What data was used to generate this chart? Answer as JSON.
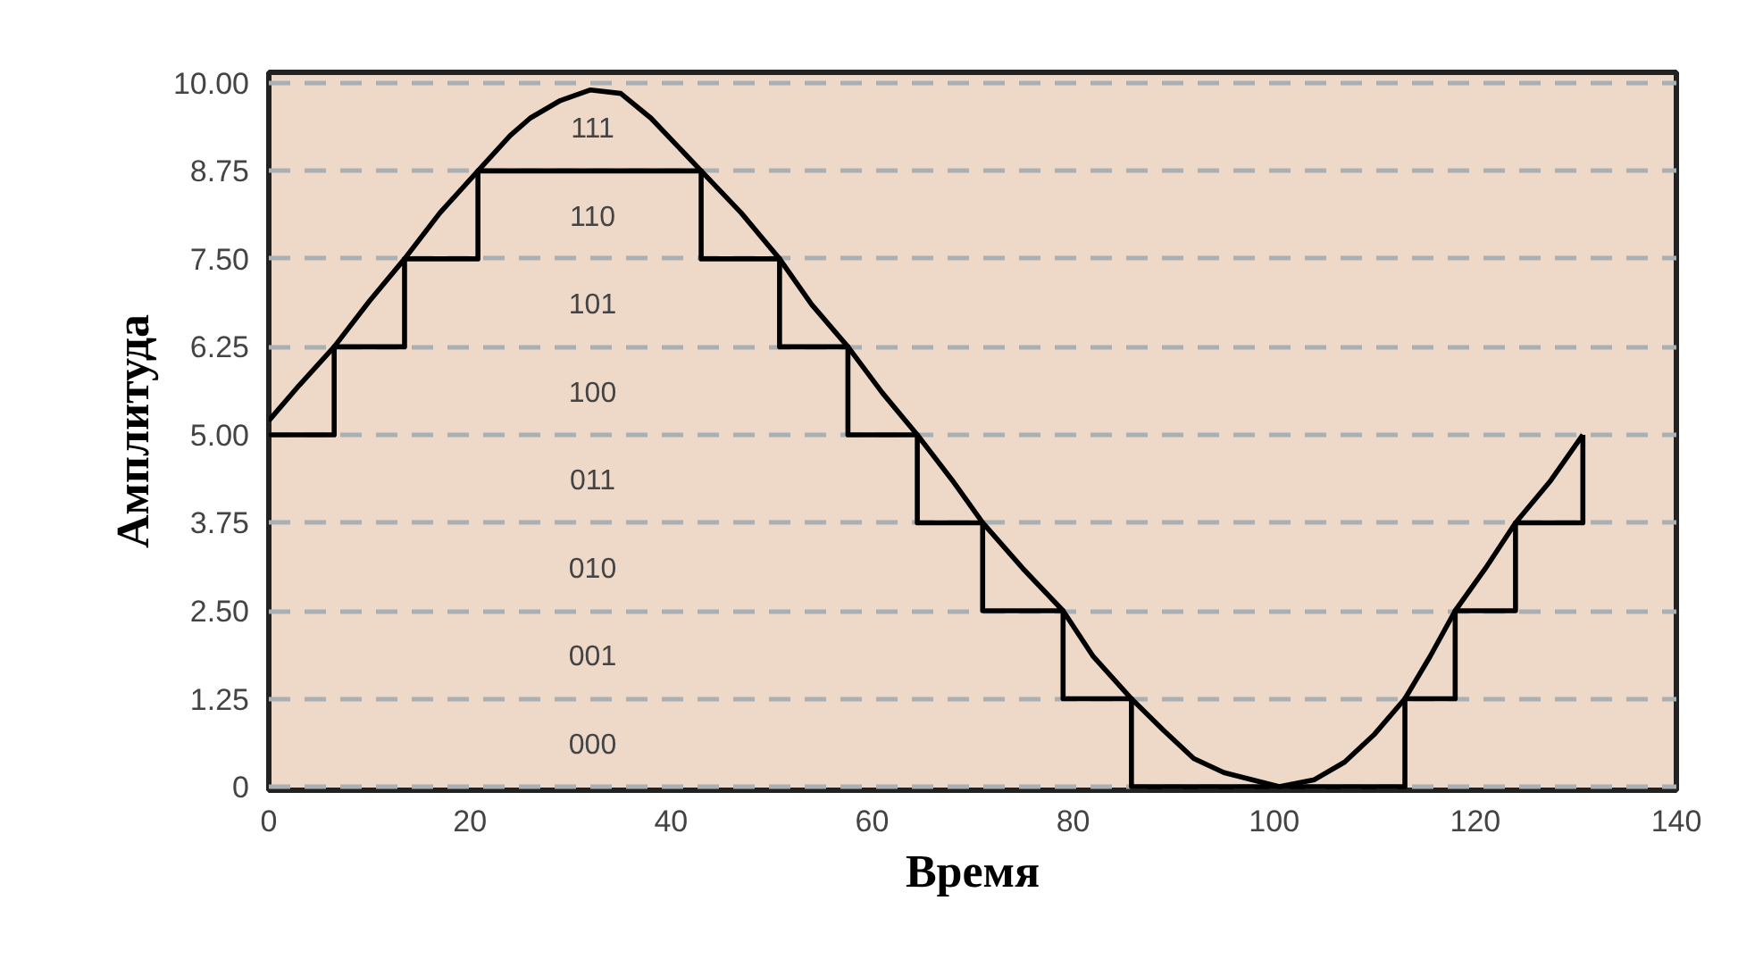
{
  "chart_data": {
    "type": "line",
    "xlabel": "Время",
    "ylabel": "Амплитуда",
    "xlim": [
      0,
      140
    ],
    "ylim": [
      -0.05,
      10.15
    ],
    "xticks": [
      0,
      20,
      40,
      60,
      80,
      100,
      120,
      140
    ],
    "yticks": [
      0,
      1.25,
      {
        "value": 2.5,
        "label": "2.50"
      },
      3.75,
      {
        "value": 5,
        "label": "5.00"
      },
      6.25,
      {
        "value": 7.5,
        "label": "7.50"
      },
      8.75,
      {
        "value": 10,
        "label": "10.00"
      }
    ],
    "grid": "y",
    "line_style": "solid",
    "marker": "none",
    "series": [
      {
        "color": "#000000",
        "x": [
          0,
          3,
          6.5,
          10,
          13.5,
          17,
          20.8,
          24,
          26,
          29,
          32,
          35,
          38,
          40,
          43,
          47,
          50.8,
          54,
          57.6,
          61,
          64.5,
          68,
          71,
          75,
          79,
          82,
          85.8,
          89,
          92,
          95,
          100.5,
          104,
          107,
          110,
          113,
          115.5,
          118,
          121,
          124,
          127.5,
          130.7
        ],
        "values": [
          5.2,
          5.7,
          6.25,
          6.9,
          7.5,
          8.15,
          8.75,
          9.25,
          9.5,
          9.75,
          9.9,
          9.85,
          9.5,
          9.2,
          8.75,
          8.15,
          7.5,
          6.85,
          6.25,
          5.6,
          5.0,
          4.35,
          3.75,
          3.1,
          2.5,
          1.85,
          1.25,
          0.8,
          0.4,
          0.2,
          0,
          0.1,
          0.35,
          0.75,
          1.25,
          1.85,
          2.5,
          3.1,
          3.75,
          4.35,
          5.0
        ]
      },
      {
        "type": "step",
        "color": "#000000",
        "x": [
          0,
          6.5,
          13.5,
          20.8,
          43,
          50.8,
          57.6,
          64.5,
          71,
          79,
          85.8,
          113,
          118,
          124,
          130.7
        ],
        "values": [
          5,
          6.25,
          7.5,
          8.75,
          7.5,
          6.25,
          5,
          3.75,
          2.5,
          1.25,
          0,
          1.25,
          2.5,
          3.75,
          5
        ]
      }
    ],
    "annotations": [
      "111",
      "110",
      "101",
      "100",
      "011",
      "010",
      "001",
      "000"
    ]
  }
}
